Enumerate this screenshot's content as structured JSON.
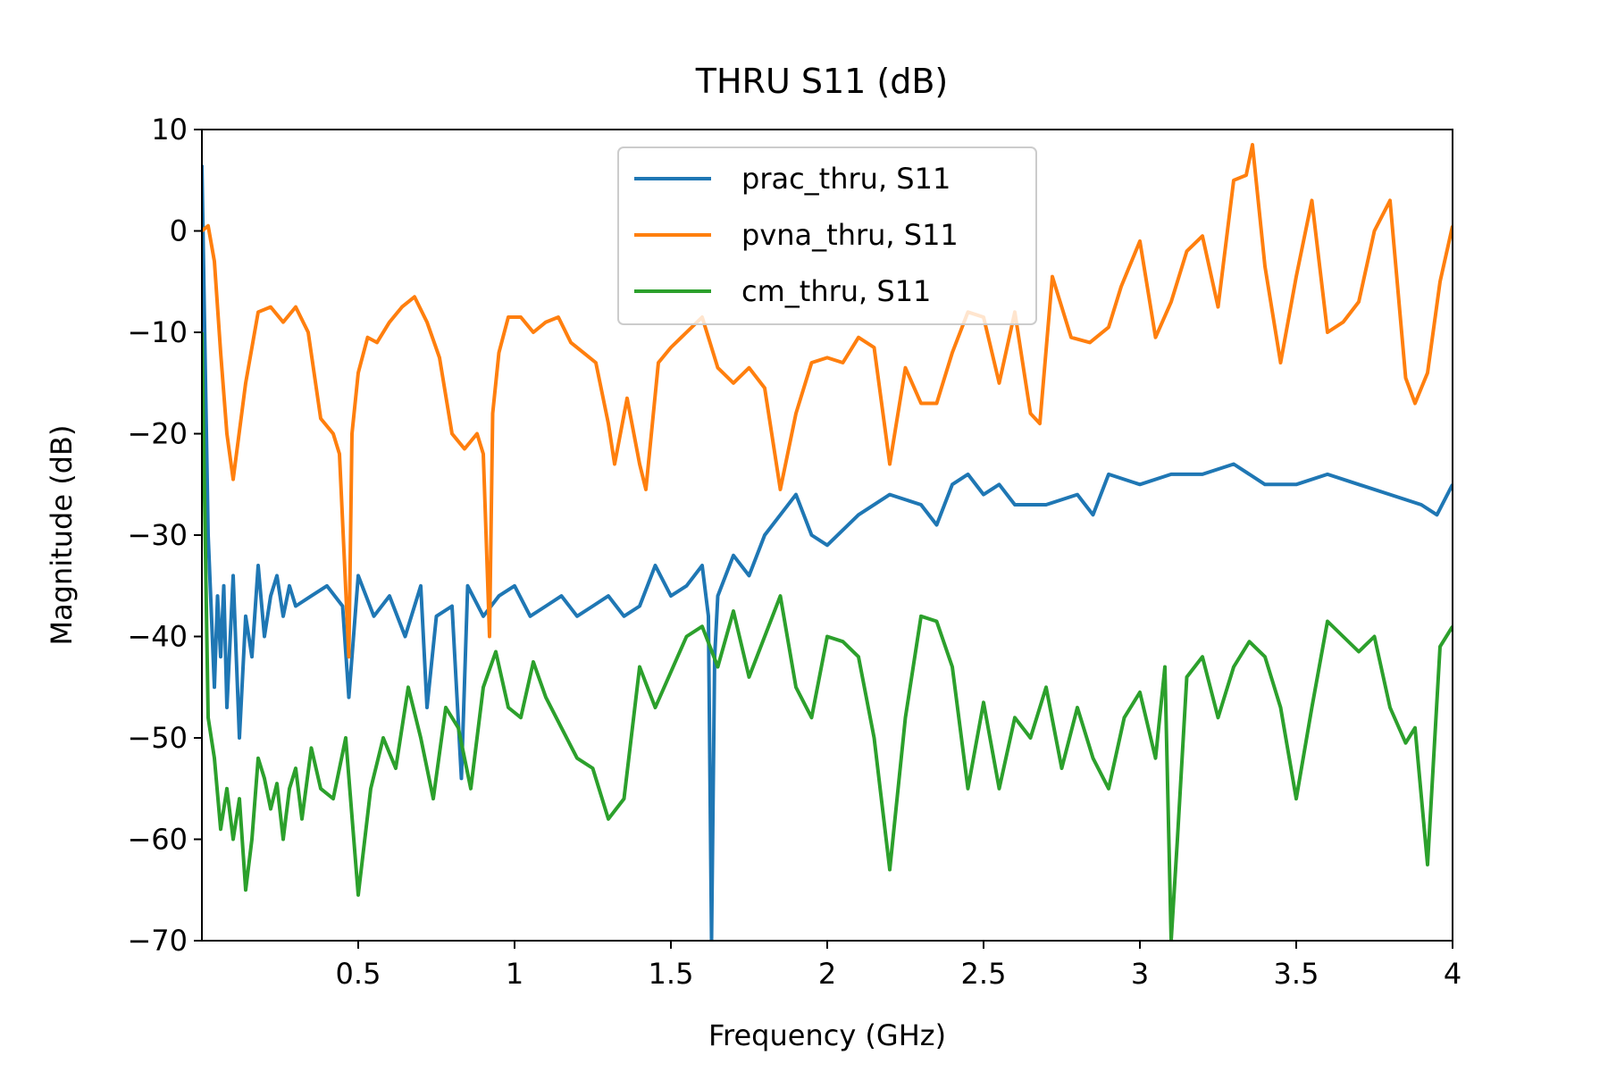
{
  "chart_data": {
    "type": "line",
    "title": "THRU S11 (dB)",
    "xlabel": "Frequency (GHz)",
    "ylabel": "Magnitude (dB)",
    "xlim": [
      0.0,
      4.0
    ],
    "ylim": [
      -70,
      10
    ],
    "xticks": [
      0.5,
      1,
      1.5,
      2,
      2.5,
      3,
      3.5,
      4
    ],
    "xtick_labels": [
      "0.5",
      "1",
      "1.5",
      "2",
      "2.5",
      "3",
      "3.5",
      "4"
    ],
    "yticks": [
      10,
      0,
      -10,
      -20,
      -30,
      -40,
      -50,
      -60,
      -70
    ],
    "ytick_labels": [
      "10",
      "0",
      "−10",
      "−20",
      "−30",
      "−40",
      "−50",
      "−60",
      "−70"
    ],
    "grid": false,
    "legend_position": "top-center",
    "series": [
      {
        "name": "prac_thru, S11",
        "color": "#1f77b4",
        "x": [
          0.0,
          0.01,
          0.02,
          0.04,
          0.05,
          0.06,
          0.07,
          0.08,
          0.1,
          0.12,
          0.14,
          0.16,
          0.18,
          0.2,
          0.22,
          0.24,
          0.26,
          0.28,
          0.3,
          0.35,
          0.4,
          0.45,
          0.47,
          0.5,
          0.55,
          0.6,
          0.65,
          0.7,
          0.72,
          0.75,
          0.8,
          0.83,
          0.85,
          0.9,
          0.95,
          1.0,
          1.05,
          1.1,
          1.15,
          1.2,
          1.25,
          1.3,
          1.35,
          1.4,
          1.45,
          1.5,
          1.55,
          1.6,
          1.62,
          1.63,
          1.64,
          1.65,
          1.7,
          1.75,
          1.8,
          1.85,
          1.9,
          1.95,
          2.0,
          2.1,
          2.2,
          2.3,
          2.35,
          2.4,
          2.45,
          2.5,
          2.55,
          2.6,
          2.7,
          2.8,
          2.85,
          2.9,
          3.0,
          3.1,
          3.2,
          3.3,
          3.4,
          3.5,
          3.6,
          3.7,
          3.8,
          3.9,
          3.95,
          4.0
        ],
        "values": [
          6.5,
          -12.0,
          -30.0,
          -45.0,
          -36.0,
          -42.0,
          -35.0,
          -47.0,
          -34.0,
          -50.0,
          -38.0,
          -42.0,
          -33.0,
          -40.0,
          -36.0,
          -34.0,
          -38.0,
          -35.0,
          -37.0,
          -36.0,
          -35.0,
          -37.0,
          -46.0,
          -34.0,
          -38.0,
          -36.0,
          -40.0,
          -35.0,
          -47.0,
          -38.0,
          -37.0,
          -54.0,
          -35.0,
          -38.0,
          -36.0,
          -35.0,
          -38.0,
          -37.0,
          -36.0,
          -38.0,
          -37.0,
          -36.0,
          -38.0,
          -37.0,
          -33.0,
          -36.0,
          -35.0,
          -33.0,
          -38.0,
          -70.0,
          -42.0,
          -36.0,
          -32.0,
          -34.0,
          -30.0,
          -28.0,
          -26.0,
          -30.0,
          -31.0,
          -28.0,
          -26.0,
          -27.0,
          -29.0,
          -25.0,
          -24.0,
          -26.0,
          -25.0,
          -27.0,
          -27.0,
          -26.0,
          -28.0,
          -24.0,
          -25.0,
          -24.0,
          -24.0,
          -23.0,
          -25.0,
          -25.0,
          -24.0,
          -25.0,
          -26.0,
          -27.0,
          -28.0,
          -25.0
        ]
      },
      {
        "name": "pvna_thru, S11",
        "color": "#ff7f0e",
        "x": [
          0.0,
          0.02,
          0.04,
          0.06,
          0.08,
          0.1,
          0.14,
          0.18,
          0.22,
          0.26,
          0.3,
          0.34,
          0.38,
          0.42,
          0.44,
          0.47,
          0.48,
          0.5,
          0.53,
          0.56,
          0.6,
          0.64,
          0.68,
          0.72,
          0.76,
          0.8,
          0.84,
          0.88,
          0.9,
          0.92,
          0.93,
          0.95,
          0.98,
          1.02,
          1.06,
          1.1,
          1.14,
          1.18,
          1.22,
          1.26,
          1.3,
          1.32,
          1.36,
          1.4,
          1.42,
          1.46,
          1.5,
          1.55,
          1.6,
          1.65,
          1.7,
          1.75,
          1.8,
          1.85,
          1.9,
          1.95,
          2.0,
          2.05,
          2.1,
          2.15,
          2.2,
          2.25,
          2.3,
          2.35,
          2.4,
          2.45,
          2.5,
          2.55,
          2.6,
          2.65,
          2.68,
          2.72,
          2.78,
          2.84,
          2.9,
          2.94,
          3.0,
          3.05,
          3.1,
          3.15,
          3.2,
          3.25,
          3.3,
          3.34,
          3.36,
          3.4,
          3.45,
          3.5,
          3.55,
          3.6,
          3.65,
          3.7,
          3.75,
          3.8,
          3.85,
          3.88,
          3.92,
          3.96,
          4.0
        ],
        "values": [
          0.0,
          0.5,
          -3.0,
          -12.0,
          -20.0,
          -24.5,
          -15.0,
          -8.0,
          -7.5,
          -9.0,
          -7.5,
          -10.0,
          -18.5,
          -20.0,
          -22.0,
          -42.0,
          -20.0,
          -14.0,
          -10.5,
          -11.0,
          -9.0,
          -7.5,
          -6.5,
          -9.0,
          -12.5,
          -20.0,
          -21.5,
          -20.0,
          -22.0,
          -40.0,
          -18.0,
          -12.0,
          -8.5,
          -8.5,
          -10.0,
          -9.0,
          -8.5,
          -11.0,
          -12.0,
          -13.0,
          -19.0,
          -23.0,
          -16.5,
          -23.0,
          -25.5,
          -13.0,
          -11.5,
          -10.0,
          -8.5,
          -13.5,
          -15.0,
          -13.5,
          -15.5,
          -25.5,
          -18.0,
          -13.0,
          -12.5,
          -13.0,
          -10.5,
          -11.5,
          -23.0,
          -13.5,
          -17.0,
          -17.0,
          -12.0,
          -8.0,
          -8.5,
          -15.0,
          -8.0,
          -18.0,
          -19.0,
          -4.5,
          -10.5,
          -11.0,
          -9.5,
          -5.5,
          -1.0,
          -10.5,
          -7.0,
          -2.0,
          -0.5,
          -7.5,
          5.0,
          5.5,
          8.5,
          -3.5,
          -13.0,
          -4.5,
          3.0,
          -10.0,
          -9.0,
          -7.0,
          0.0,
          3.0,
          -14.5,
          -17.0,
          -14.0,
          -5.0,
          0.5
        ]
      },
      {
        "name": "cm_thru, S11",
        "color": "#2ca02c",
        "x": [
          0.0,
          0.02,
          0.04,
          0.06,
          0.08,
          0.1,
          0.12,
          0.14,
          0.16,
          0.18,
          0.2,
          0.22,
          0.24,
          0.26,
          0.28,
          0.3,
          0.32,
          0.35,
          0.38,
          0.42,
          0.46,
          0.5,
          0.54,
          0.58,
          0.62,
          0.66,
          0.7,
          0.74,
          0.78,
          0.82,
          0.86,
          0.9,
          0.94,
          0.98,
          1.02,
          1.06,
          1.1,
          1.15,
          1.2,
          1.25,
          1.3,
          1.35,
          1.4,
          1.45,
          1.5,
          1.55,
          1.6,
          1.65,
          1.7,
          1.75,
          1.8,
          1.85,
          1.9,
          1.95,
          2.0,
          2.05,
          2.1,
          2.15,
          2.2,
          2.25,
          2.3,
          2.35,
          2.4,
          2.45,
          2.5,
          2.55,
          2.6,
          2.65,
          2.7,
          2.75,
          2.8,
          2.85,
          2.9,
          2.95,
          3.0,
          3.05,
          3.08,
          3.1,
          3.12,
          3.15,
          3.2,
          3.25,
          3.3,
          3.35,
          3.4,
          3.45,
          3.5,
          3.55,
          3.6,
          3.65,
          3.7,
          3.75,
          3.8,
          3.85,
          3.88,
          3.92,
          3.96,
          4.0
        ],
        "values": [
          -10.0,
          -48.0,
          -52.0,
          -59.0,
          -55.0,
          -60.0,
          -56.0,
          -65.0,
          -60.0,
          -52.0,
          -54.0,
          -57.0,
          -54.5,
          -60.0,
          -55.0,
          -53.0,
          -58.0,
          -51.0,
          -55.0,
          -56.0,
          -50.0,
          -65.5,
          -55.0,
          -50.0,
          -53.0,
          -45.0,
          -50.0,
          -56.0,
          -47.0,
          -49.0,
          -55.0,
          -45.0,
          -41.5,
          -47.0,
          -48.0,
          -42.5,
          -46.0,
          -49.0,
          -52.0,
          -53.0,
          -58.0,
          -56.0,
          -43.0,
          -47.0,
          -43.5,
          -40.0,
          -39.0,
          -43.0,
          -37.5,
          -44.0,
          -40.0,
          -36.0,
          -45.0,
          -48.0,
          -40.0,
          -40.5,
          -42.0,
          -50.0,
          -63.0,
          -48.0,
          -38.0,
          -38.5,
          -43.0,
          -55.0,
          -46.5,
          -55.0,
          -48.0,
          -50.0,
          -45.0,
          -53.0,
          -47.0,
          -52.0,
          -55.0,
          -48.0,
          -45.5,
          -52.0,
          -43.0,
          -70.0,
          -60.0,
          -44.0,
          -42.0,
          -48.0,
          -43.0,
          -40.5,
          -42.0,
          -47.0,
          -56.0,
          -47.0,
          -38.5,
          -40.0,
          -41.5,
          -40.0,
          -47.0,
          -50.5,
          -49.0,
          -62.5,
          -41.0,
          -39.0
        ]
      }
    ]
  }
}
